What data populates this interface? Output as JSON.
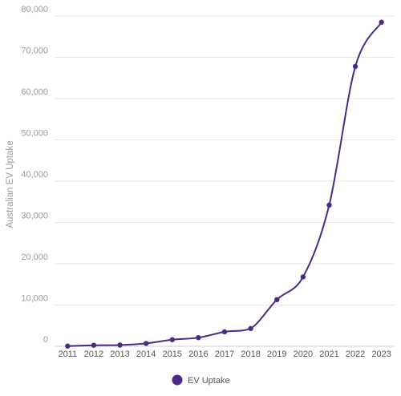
{
  "chart_data": {
    "type": "line",
    "ylabel": "Australian EV Uptake",
    "xlabel": "",
    "ylim": [
      0,
      80000
    ],
    "yticks": [
      0,
      10000,
      20000,
      30000,
      40000,
      50000,
      60000,
      70000,
      80000
    ],
    "ytick_labels": [
      "0",
      "10,000",
      "20,000",
      "30,000",
      "40,000",
      "50,000",
      "60,000",
      "70,000",
      "80,000"
    ],
    "x": [
      "2011",
      "2012",
      "2013",
      "2014",
      "2015",
      "2016",
      "2017",
      "2018",
      "2019",
      "2020",
      "2021",
      "2022",
      "2023"
    ],
    "series": [
      {
        "name": "EV Uptake",
        "color": "#4b2a86",
        "values": [
          50,
          250,
          300,
          700,
          1600,
          2100,
          3500,
          4300,
          11300,
          16800,
          34200,
          67800,
          78500
        ]
      }
    ],
    "grid": true,
    "smooth": true,
    "legend_position": "bottom-center"
  }
}
